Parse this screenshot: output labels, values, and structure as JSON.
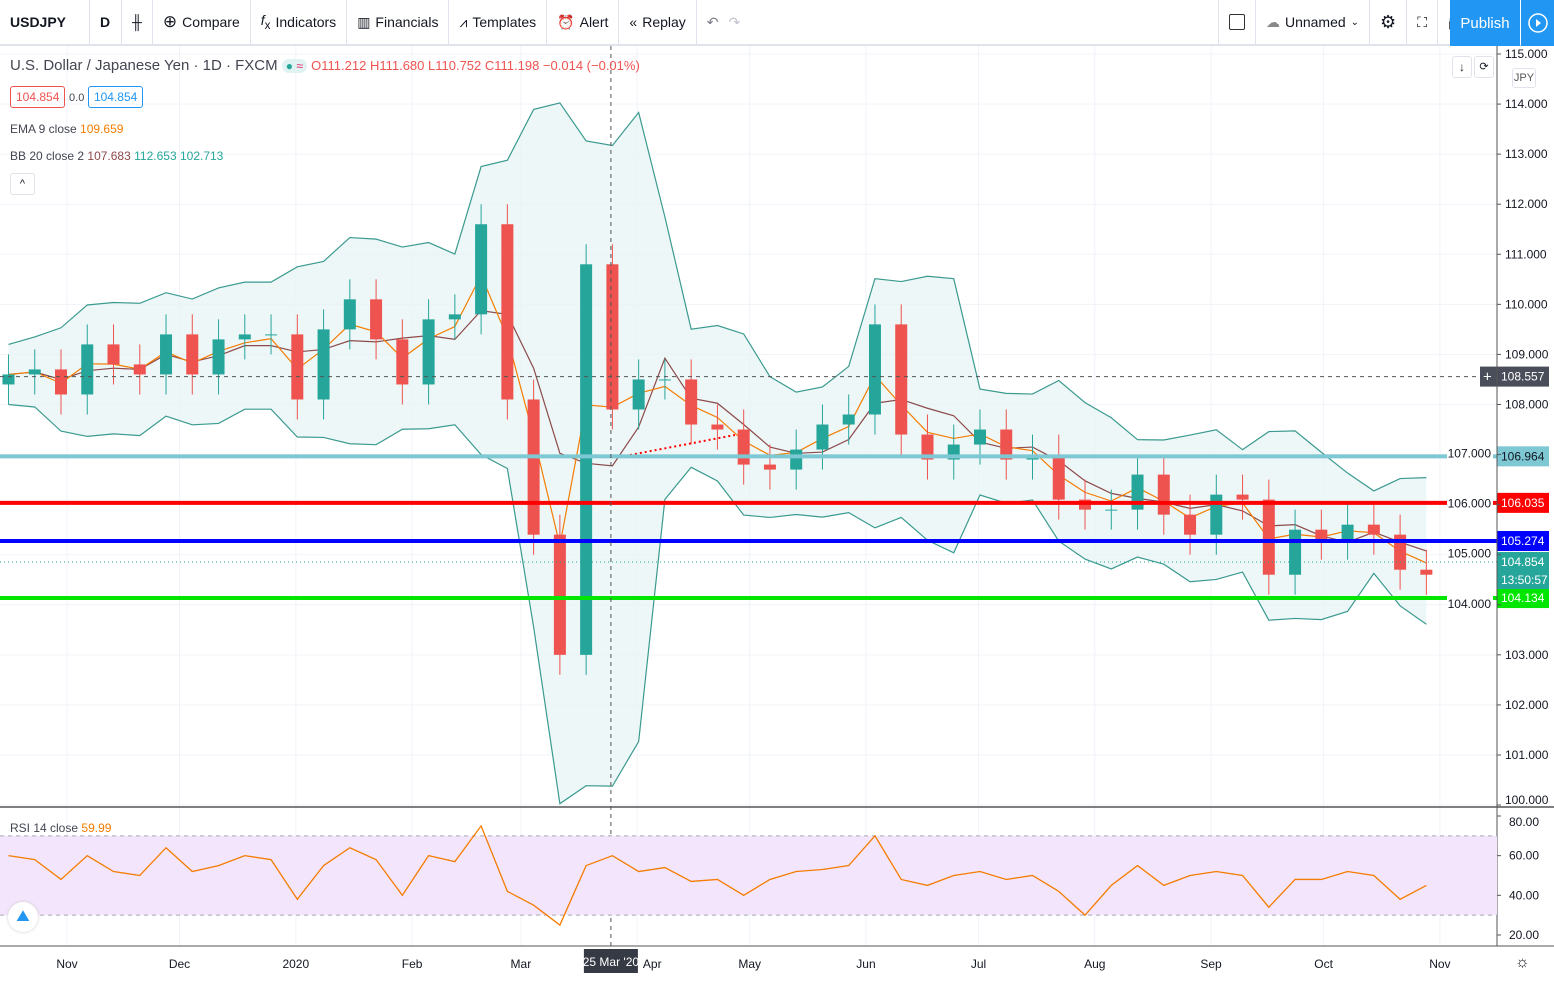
{
  "toolbar": {
    "symbol": "USDJPY",
    "interval": "D",
    "compare": "Compare",
    "indicators": "Indicators",
    "financials": "Financials",
    "templates": "Templates",
    "alert": "Alert",
    "replay": "Replay",
    "layout_name": "Unnamed",
    "publish": "Publish"
  },
  "legend": {
    "title": "U.S. Dollar / Japanese Yen · 1D · FXCM",
    "ohlc": "O111.212 H111.680 L110.752 C111.198 −0.014 (−0.01%)",
    "bid": "104.854",
    "spread": "0.0",
    "ask": "104.854",
    "ema_label": "EMA 9 close",
    "ema_value": "109.659",
    "bb_label": "BB 20 close 2",
    "bb_basis": "107.683",
    "bb_upper": "112.653",
    "bb_lower": "102.713",
    "rsi_label": "RSI 14 close",
    "rsi_value": "59.99"
  },
  "currency": "JPY",
  "colors": {
    "up": "#26a69a",
    "down": "#ef5350",
    "ema": "#f57c00",
    "bb_basis": "#8d4a4a",
    "bb_band": "#3a9a8f",
    "rsi": "#f57c00",
    "accent": "#2196f3"
  },
  "chart_data": [
    {
      "type": "candlestick",
      "ylim": [
        100,
        115
      ],
      "y_ticks": [
        "115.000",
        "114.000",
        "113.000",
        "112.000",
        "111.000",
        "110.000",
        "109.000",
        "108.000",
        "107.000",
        "106.000",
        "105.000",
        "104.000",
        "103.000",
        "102.000",
        "101.000",
        "100.000"
      ],
      "x_ticks": [
        "Nov",
        "Dec",
        "2020",
        "Feb",
        "Mar",
        "Apr",
        "May",
        "Jun",
        "Jul",
        "Aug",
        "Sep",
        "Oct",
        "Nov"
      ],
      "x_tick_dates": [
        "2019-11-01",
        "2019-12-01",
        "2020-01-01",
        "2020-02-01",
        "2020-03-01",
        "2020-04-01",
        "2020-05-01",
        "2020-06-01",
        "2020-07-01",
        "2020-08-01",
        "2020-09-01",
        "2020-10-01",
        "2020-11-01"
      ],
      "crosshair": {
        "date": "2020-03-25",
        "date_label": "25 Mar '20",
        "price": "108.557"
      },
      "last_price": "104.854",
      "countdown": "13:50:57",
      "horizontal_lines": [
        {
          "price": 106.964,
          "label": "106.964",
          "color": "#7ec8d3"
        },
        {
          "price": 106.035,
          "label": "106.035",
          "color": "#ff0000"
        },
        {
          "price": 105.274,
          "label": "105.274",
          "color": "#0000ff"
        },
        {
          "price": 104.134,
          "label": "104.134",
          "color": "#00e600"
        }
      ],
      "dates": [
        "2019-10-14",
        "2019-10-21",
        "2019-10-28",
        "2019-11-04",
        "2019-11-11",
        "2019-11-18",
        "2019-11-25",
        "2019-12-02",
        "2019-12-09",
        "2019-12-16",
        "2019-12-23",
        "2019-12-30",
        "2020-01-06",
        "2020-01-13",
        "2020-01-20",
        "2020-01-27",
        "2020-02-03",
        "2020-02-10",
        "2020-02-17",
        "2020-02-24",
        "2020-03-02",
        "2020-03-09",
        "2020-03-16",
        "2020-03-23",
        "2020-03-30",
        "2020-04-06",
        "2020-04-13",
        "2020-04-20",
        "2020-04-27",
        "2020-05-04",
        "2020-05-11",
        "2020-05-18",
        "2020-05-25",
        "2020-06-01",
        "2020-06-08",
        "2020-06-15",
        "2020-06-22",
        "2020-06-29",
        "2020-07-06",
        "2020-07-13",
        "2020-07-20",
        "2020-07-27",
        "2020-08-03",
        "2020-08-10",
        "2020-08-17",
        "2020-08-24",
        "2020-08-31",
        "2020-09-07",
        "2020-09-14",
        "2020-09-21",
        "2020-09-28",
        "2020-10-05",
        "2020-10-12",
        "2020-10-19",
        "2020-10-26"
      ],
      "close": [
        108.6,
        108.7,
        108.2,
        109.2,
        108.8,
        108.6,
        109.4,
        108.6,
        109.3,
        109.4,
        109.4,
        108.1,
        109.5,
        110.1,
        109.3,
        108.4,
        109.7,
        109.8,
        111.6,
        108.1,
        105.4,
        103.0,
        110.8,
        107.9,
        108.5,
        108.5,
        107.6,
        107.5,
        106.8,
        106.7,
        107.1,
        107.6,
        107.8,
        109.6,
        107.4,
        106.9,
        107.2,
        107.5,
        106.9,
        107.0,
        106.1,
        105.9,
        105.9,
        106.6,
        105.8,
        105.4,
        106.2,
        106.1,
        104.6,
        105.5,
        105.3,
        105.6,
        105.4,
        104.7,
        104.6
      ]
    },
    {
      "type": "line",
      "name": "RSI 14 close",
      "ylim": [
        20,
        80
      ],
      "y_ticks": [
        "80.00",
        "60.00",
        "40.00",
        "20.00"
      ],
      "bands": [
        30,
        70
      ],
      "values": [
        60,
        58,
        48,
        60,
        52,
        50,
        64,
        52,
        55,
        60,
        58,
        38,
        55,
        64,
        58,
        40,
        60,
        57,
        75,
        42,
        35,
        25,
        55,
        60,
        52,
        54,
        47,
        48,
        40,
        48,
        52,
        53,
        55,
        70,
        48,
        45,
        50,
        52,
        48,
        50,
        42,
        30,
        45,
        55,
        45,
        50,
        52,
        50,
        34,
        48,
        48,
        52,
        50,
        38,
        45
      ]
    }
  ]
}
